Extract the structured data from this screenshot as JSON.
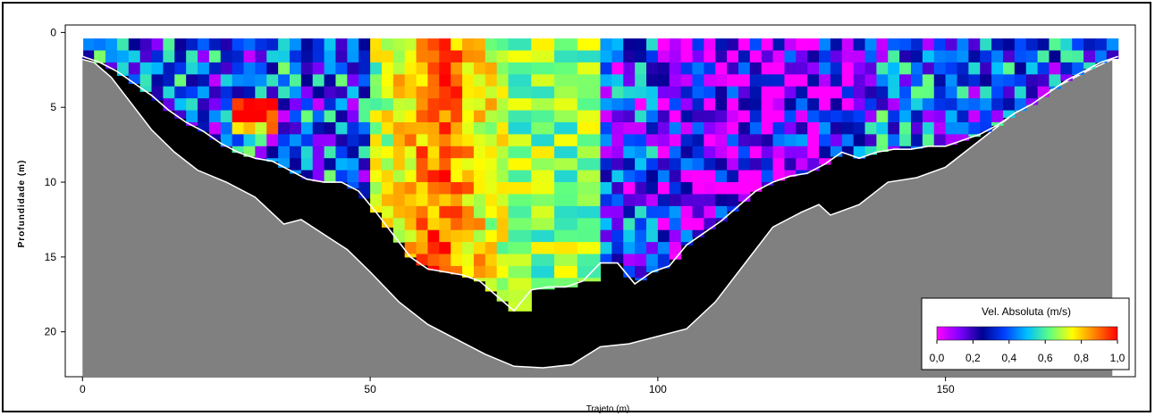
{
  "chart_data": {
    "type": "heatmap",
    "title": "",
    "xlabel": "Trajeto (m)",
    "ylabel": "Profundidade (m)",
    "xlim": [
      -3,
      183
    ],
    "ylim": [
      23,
      -0.5
    ],
    "y_inverted": true,
    "x_ticks": [
      0,
      50,
      100,
      150
    ],
    "x_tick_labels": [
      "0",
      "50",
      "100",
      "150"
    ],
    "y_ticks": [
      0,
      5,
      10,
      15,
      20
    ],
    "y_tick_labels": [
      "0",
      "5",
      "10",
      "15",
      "20"
    ],
    "colorbar": {
      "title": "Vel. Absoluta (m/s)",
      "range": [
        0.0,
        1.0
      ],
      "ticks": [
        0.0,
        0.2,
        0.4,
        0.6,
        0.8,
        1.0
      ],
      "tick_labels": [
        "0,0",
        "0,2",
        "0,4",
        "0,6",
        "0,8",
        "1,0"
      ],
      "colors": [
        "#ff00ff",
        "#8000ff",
        "#000090",
        "#0040ff",
        "#00c0ff",
        "#60ff80",
        "#ffff00",
        "#ff8000",
        "#ff0000"
      ],
      "position": "bottom-right"
    },
    "bed_profile": {
      "x": [
        0,
        2,
        5,
        8,
        12,
        16,
        20,
        25,
        30,
        35,
        38,
        42,
        46,
        50,
        55,
        60,
        65,
        70,
        75,
        80,
        85,
        90,
        95,
        100,
        105,
        110,
        115,
        120,
        125,
        128,
        130,
        135,
        140,
        145,
        150,
        155,
        160,
        165,
        170,
        175,
        179
      ],
      "depth": [
        1.8,
        2.0,
        3.0,
        4.5,
        6.5,
        8.0,
        9.2,
        10.0,
        11.0,
        12.8,
        12.5,
        13.5,
        14.5,
        16.0,
        18.0,
        19.5,
        20.5,
        21.5,
        22.3,
        22.4,
        22.2,
        21.0,
        20.8,
        20.3,
        19.8,
        18.0,
        15.5,
        13.0,
        12.0,
        11.5,
        12.2,
        11.5,
        10.0,
        9.7,
        9.0,
        7.5,
        6.0,
        4.5,
        3.5,
        2.5,
        1.8
      ],
      "color": "#808080",
      "unmeasured_color": "#000000"
    },
    "measured_region": {
      "x": [
        0,
        3,
        6,
        9,
        12,
        15,
        18,
        21,
        24,
        27,
        30,
        33,
        36,
        39,
        42,
        45,
        48,
        51,
        54,
        57,
        60,
        63,
        66,
        69,
        72,
        75,
        78,
        81,
        84,
        87,
        90,
        93,
        96,
        99,
        102,
        105,
        108,
        111,
        114,
        117,
        120,
        123,
        126,
        129,
        132,
        135,
        138,
        141,
        144,
        147,
        150,
        153,
        156,
        159,
        162,
        165,
        168,
        171,
        174,
        177,
        180
      ],
      "bottom_depth": [
        1.6,
        2.0,
        2.6,
        3.4,
        4.2,
        5.2,
        6.0,
        6.6,
        7.4,
        8.0,
        8.4,
        8.6,
        9.2,
        9.8,
        10.0,
        10.0,
        10.6,
        12.0,
        13.5,
        15.0,
        15.8,
        16.0,
        16.2,
        16.6,
        17.6,
        18.6,
        17.2,
        17.0,
        17.0,
        16.6,
        15.4,
        15.4,
        16.8,
        16.0,
        15.6,
        14.2,
        13.4,
        12.6,
        11.6,
        10.6,
        10.0,
        9.6,
        9.4,
        8.8,
        8.0,
        8.4,
        8.0,
        7.8,
        7.8,
        7.6,
        7.6,
        7.2,
        6.8,
        6.2,
        5.4,
        4.8,
        4.0,
        3.2,
        2.6,
        2.0,
        1.6
      ],
      "top_depth": 0.4,
      "outline_color": "#ffffff"
    },
    "velocity_pattern": {
      "description_free": true,
      "high_velocity_x_range": [
        50,
        75
      ],
      "moderate_velocity_x_range": [
        75,
        90
      ],
      "low_velocity_x_range": [
        90,
        180
      ],
      "left_bank_hotspot": {
        "x": 30,
        "depth": 5.2,
        "value": 0.95
      }
    }
  }
}
